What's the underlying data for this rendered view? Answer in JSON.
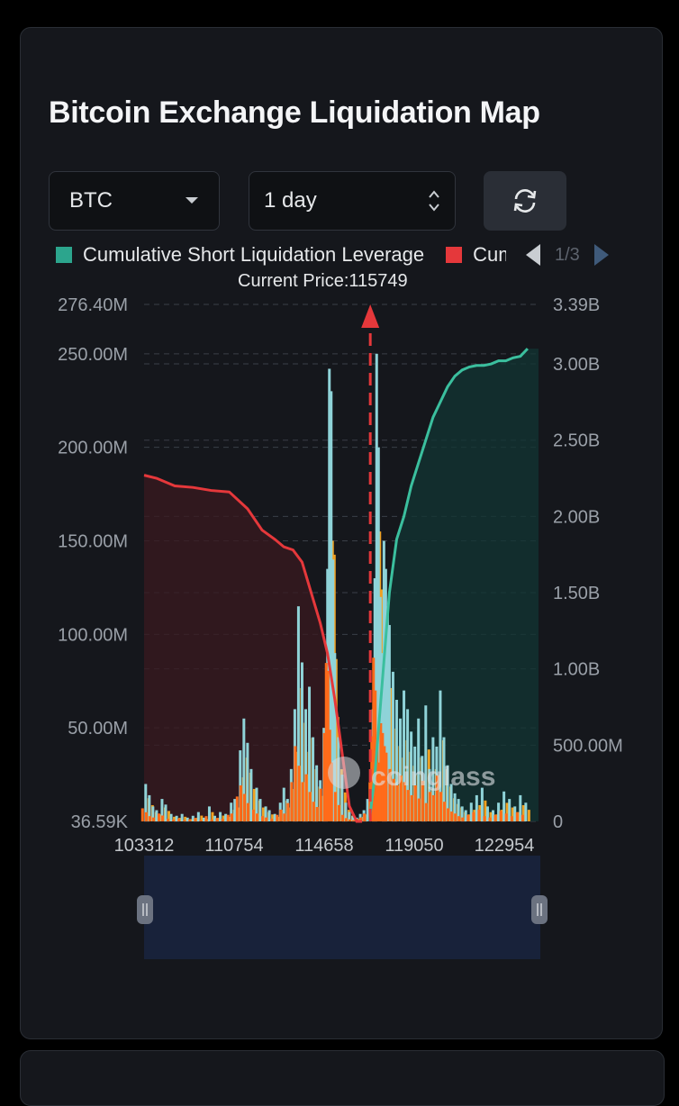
{
  "title": "Bitcoin Exchange Liquidation Map",
  "controls": {
    "symbol": "BTC",
    "period": "1 day",
    "refresh_icon": "refresh-icon"
  },
  "legend": {
    "items": [
      {
        "label": "Cumulative Short Liquidation Leverage",
        "color": "#2ca58d"
      },
      {
        "label": "Cumulative Long Liquidation Leverage",
        "color": "#e5383b"
      }
    ],
    "page": "1/3"
  },
  "chart_data": {
    "type": "bar",
    "current_price_label": "Current Price:115749",
    "current_price": 115749,
    "x_ticks": [
      "103312",
      "110754",
      "114658",
      "119050",
      "122954"
    ],
    "x_range": [
      103312,
      125000
    ],
    "y_left_ticks": [
      "276.40M",
      "250.00M",
      "200.00M",
      "150.00M",
      "100.00M",
      "50.00M",
      "36.59K"
    ],
    "y_left_range": [
      0,
      276400000
    ],
    "y_right_ticks": [
      "3.39B",
      "3.00B",
      "2.50B",
      "2.00B",
      "1.50B",
      "1.00B",
      "500.00M",
      "0"
    ],
    "y_right_range": [
      0,
      3390000000
    ],
    "long_cumulative": {
      "name": "Cumulative Long Liquidation Leverage",
      "x": [
        103312,
        104000,
        105000,
        106000,
        107000,
        108000,
        109000,
        109800,
        110500,
        111000,
        111500,
        112000,
        112500,
        113000,
        113400,
        113800,
        114200,
        114600,
        115000,
        115300
      ],
      "values": [
        2.27,
        2.25,
        2.2,
        2.19,
        2.17,
        2.16,
        2.05,
        1.91,
        1.85,
        1.8,
        1.78,
        1.7,
        1.5,
        1.3,
        1.1,
        0.8,
        0.45,
        0.1,
        0.0,
        0.0
      ],
      "unit": "B"
    },
    "short_cumulative": {
      "name": "Cumulative Short Liquidation Leverage",
      "x": [
        115700,
        116000,
        116400,
        116800,
        117200,
        117600,
        118000,
        118400,
        118800,
        119200,
        119600,
        120000,
        120400,
        120800,
        121200,
        121600,
        122000,
        122400,
        122800,
        123200,
        123600,
        124000,
        124400
      ],
      "values": [
        0.0,
        0.3,
        0.9,
        1.5,
        1.85,
        2.0,
        2.2,
        2.35,
        2.5,
        2.65,
        2.75,
        2.85,
        2.92,
        2.96,
        2.98,
        2.99,
        2.99,
        3.0,
        3.02,
        3.02,
        3.04,
        3.05,
        3.1
      ],
      "unit": "B"
    },
    "bar_series": [
      {
        "color": "#8fd3d8",
        "description": "per-level total"
      },
      {
        "color": "#f0a020",
        "description": "leverage tier"
      },
      {
        "color": "#ff6b1a",
        "description": "leverage tier"
      }
    ],
    "bars": [
      {
        "x": 103400,
        "v": 20
      },
      {
        "x": 103600,
        "v": 14
      },
      {
        "x": 103800,
        "v": 8
      },
      {
        "x": 104000,
        "v": 6
      },
      {
        "x": 104300,
        "v": 12
      },
      {
        "x": 104500,
        "v": 9
      },
      {
        "x": 104800,
        "v": 4
      },
      {
        "x": 105100,
        "v": 3
      },
      {
        "x": 105400,
        "v": 4
      },
      {
        "x": 105700,
        "v": 2
      },
      {
        "x": 106000,
        "v": 3
      },
      {
        "x": 106300,
        "v": 5
      },
      {
        "x": 106600,
        "v": 2
      },
      {
        "x": 106900,
        "v": 8
      },
      {
        "x": 107200,
        "v": 3
      },
      {
        "x": 107500,
        "v": 5
      },
      {
        "x": 107800,
        "v": 4
      },
      {
        "x": 108100,
        "v": 10
      },
      {
        "x": 108300,
        "v": 12
      },
      {
        "x": 108600,
        "v": 38
      },
      {
        "x": 108800,
        "v": 55
      },
      {
        "x": 109000,
        "v": 42
      },
      {
        "x": 109200,
        "v": 28
      },
      {
        "x": 109500,
        "v": 18
      },
      {
        "x": 109700,
        "v": 12
      },
      {
        "x": 110000,
        "v": 8
      },
      {
        "x": 110200,
        "v": 6
      },
      {
        "x": 110500,
        "v": 4
      },
      {
        "x": 110800,
        "v": 10
      },
      {
        "x": 111000,
        "v": 18
      },
      {
        "x": 111200,
        "v": 12
      },
      {
        "x": 111400,
        "v": 28
      },
      {
        "x": 111600,
        "v": 60
      },
      {
        "x": 111800,
        "v": 115
      },
      {
        "x": 112000,
        "v": 85
      },
      {
        "x": 112200,
        "v": 60
      },
      {
        "x": 112400,
        "v": 72
      },
      {
        "x": 112600,
        "v": 45
      },
      {
        "x": 112800,
        "v": 30
      },
      {
        "x": 113000,
        "v": 22
      },
      {
        "x": 113200,
        "v": 50
      },
      {
        "x": 113400,
        "v": 135
      },
      {
        "x": 113500,
        "v": 242
      },
      {
        "x": 113600,
        "v": 230
      },
      {
        "x": 113700,
        "v": 140
      },
      {
        "x": 113800,
        "v": 90
      },
      {
        "x": 114000,
        "v": 45
      },
      {
        "x": 114200,
        "v": 25
      },
      {
        "x": 114400,
        "v": 10
      },
      {
        "x": 114600,
        "v": 5
      },
      {
        "x": 114800,
        "v": 3
      },
      {
        "x": 115000,
        "v": 2
      },
      {
        "x": 115200,
        "v": 4
      },
      {
        "x": 115400,
        "v": 6
      },
      {
        "x": 115600,
        "v": 12
      },
      {
        "x": 115900,
        "v": 60
      },
      {
        "x": 116000,
        "v": 130
      },
      {
        "x": 116100,
        "v": 250
      },
      {
        "x": 116200,
        "v": 200
      },
      {
        "x": 116300,
        "v": 120
      },
      {
        "x": 116400,
        "v": 90
      },
      {
        "x": 116500,
        "v": 150
      },
      {
        "x": 116600,
        "v": 135
      },
      {
        "x": 116700,
        "v": 115
      },
      {
        "x": 116800,
        "v": 105
      },
      {
        "x": 117000,
        "v": 80
      },
      {
        "x": 117200,
        "v": 65
      },
      {
        "x": 117400,
        "v": 55
      },
      {
        "x": 117600,
        "v": 70
      },
      {
        "x": 117800,
        "v": 60
      },
      {
        "x": 118000,
        "v": 48
      },
      {
        "x": 118200,
        "v": 40
      },
      {
        "x": 118400,
        "v": 55
      },
      {
        "x": 118600,
        "v": 35
      },
      {
        "x": 118800,
        "v": 62
      },
      {
        "x": 119000,
        "v": 28
      },
      {
        "x": 119200,
        "v": 45
      },
      {
        "x": 119400,
        "v": 40
      },
      {
        "x": 119600,
        "v": 70
      },
      {
        "x": 119800,
        "v": 45
      },
      {
        "x": 120000,
        "v": 30
      },
      {
        "x": 120200,
        "v": 20
      },
      {
        "x": 120400,
        "v": 15
      },
      {
        "x": 120600,
        "v": 12
      },
      {
        "x": 120800,
        "v": 8
      },
      {
        "x": 121000,
        "v": 6
      },
      {
        "x": 121300,
        "v": 10
      },
      {
        "x": 121600,
        "v": 14
      },
      {
        "x": 121900,
        "v": 18
      },
      {
        "x": 122200,
        "v": 8
      },
      {
        "x": 122500,
        "v": 6
      },
      {
        "x": 122800,
        "v": 10
      },
      {
        "x": 123100,
        "v": 16
      },
      {
        "x": 123400,
        "v": 12
      },
      {
        "x": 123700,
        "v": 8
      },
      {
        "x": 124000,
        "v": 14
      },
      {
        "x": 124300,
        "v": 10
      }
    ],
    "bars_unit": "M",
    "grid": true,
    "watermark": "coinglass"
  }
}
